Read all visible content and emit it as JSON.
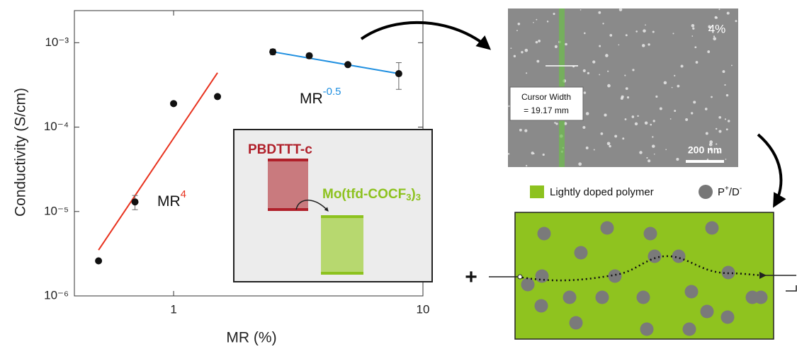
{
  "chart_data": {
    "type": "scatter",
    "x_label": "MR (%)",
    "y_label": "Conductivity (S/cm)",
    "xlog": true,
    "ylog": true,
    "xlim": [
      0.4,
      10
    ],
    "ylim": [
      1e-06,
      0.0024
    ],
    "xticks": [
      1,
      10
    ],
    "yticks": [
      {
        "value": 1e-06,
        "label": "10⁻⁶"
      },
      {
        "value": 1e-05,
        "label": "10⁻⁵"
      },
      {
        "value": 0.0001,
        "label": "10⁻⁴"
      },
      {
        "value": 0.001,
        "label": "10⁻³"
      }
    ],
    "points": {
      "color": "#111111",
      "x": [
        0.5,
        0.7,
        1,
        1.5,
        2.5,
        3.5,
        5,
        8
      ],
      "values": [
        2.6e-06,
        1.3e-05,
        0.00019,
        0.00023,
        0.00078,
        0.0007,
        0.00055,
        0.00043
      ],
      "errors": [
        null,
        2.5e-06,
        null,
        null,
        6e-05,
        5e-05,
        null,
        0.00015
      ]
    },
    "fits": [
      {
        "color": "#e8321e",
        "x": [
          0.5,
          1.5
        ],
        "values": [
          3.5e-06,
          0.00044
        ],
        "label": {
          "base": "MR",
          "exponent": "4"
        }
      },
      {
        "color": "#1f8fe0",
        "x": [
          2.5,
          8
        ],
        "values": [
          0.00078,
          0.00043
        ],
        "label": {
          "base": "MR",
          "exponent": "-0.5"
        }
      }
    ]
  },
  "inset": {
    "donor": "PBDTTT-c",
    "acceptor": [
      "Mo(tfd-COCF",
      "3",
      ")",
      "3"
    ]
  },
  "sem": {
    "percent": "4%",
    "cursor_label": [
      "Cursor Width",
      "= 19.17 mm"
    ],
    "scale": "200 nm"
  },
  "schematic": {
    "legend": [
      "Lightly doped polymer",
      [
        "P",
        "+",
        "/D",
        "-"
      ]
    ],
    "sign": "+"
  }
}
